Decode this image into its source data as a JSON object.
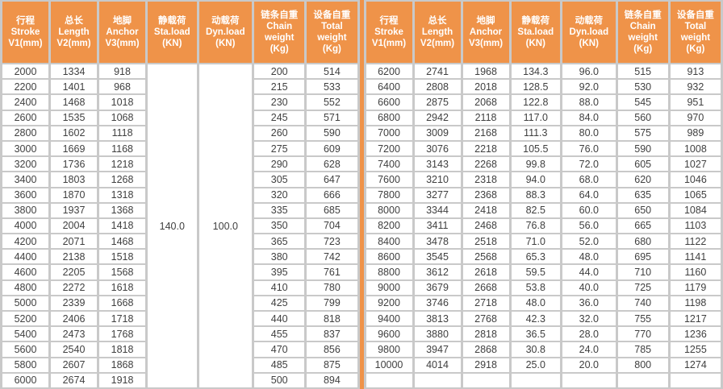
{
  "colors": {
    "header_orange": "#ef9349",
    "grid_gray": "#c9c9c9",
    "cell_white": "#ffffff",
    "text_dark": "#3f3f3f",
    "header_text": "#ffffff"
  },
  "headers": [
    "行程\nStroke\nV1(mm)",
    "总长\nLength\nV2(mm)",
    "地脚\nAnchor\nV3(mm)",
    "静载荷\nSta.load\n(KN)",
    "动载荷\nDyn.load\n(KN)",
    "链条自重\nChain\nweight\n(Kg)",
    "设备自重\nTotal\nweight\n(Kg)"
  ],
  "left_table": {
    "merged_static_load": "140.0",
    "merged_dynamic_load": "100.0",
    "rows": [
      [
        "2000",
        "1334",
        "918",
        "200",
        "514"
      ],
      [
        "2200",
        "1401",
        "968",
        "215",
        "533"
      ],
      [
        "2400",
        "1468",
        "1018",
        "230",
        "552"
      ],
      [
        "2600",
        "1535",
        "1068",
        "245",
        "571"
      ],
      [
        "2800",
        "1602",
        "1118",
        "260",
        "590"
      ],
      [
        "3000",
        "1669",
        "1168",
        "275",
        "609"
      ],
      [
        "3200",
        "1736",
        "1218",
        "290",
        "628"
      ],
      [
        "3400",
        "1803",
        "1268",
        "305",
        "647"
      ],
      [
        "3600",
        "1870",
        "1318",
        "320",
        "666"
      ],
      [
        "3800",
        "1937",
        "1368",
        "335",
        "685"
      ],
      [
        "4000",
        "2004",
        "1418",
        "350",
        "704"
      ],
      [
        "4200",
        "2071",
        "1468",
        "365",
        "723"
      ],
      [
        "4400",
        "2138",
        "1518",
        "380",
        "742"
      ],
      [
        "4600",
        "2205",
        "1568",
        "395",
        "761"
      ],
      [
        "4800",
        "2272",
        "1618",
        "410",
        "780"
      ],
      [
        "5000",
        "2339",
        "1668",
        "425",
        "799"
      ],
      [
        "5200",
        "2406",
        "1718",
        "440",
        "818"
      ],
      [
        "5400",
        "2473",
        "1768",
        "455",
        "837"
      ],
      [
        "5600",
        "2540",
        "1818",
        "470",
        "856"
      ],
      [
        "5800",
        "2607",
        "1868",
        "485",
        "875"
      ],
      [
        "6000",
        "2674",
        "1918",
        "500",
        "894"
      ]
    ]
  },
  "right_table": {
    "rows": [
      [
        "6200",
        "2741",
        "1968",
        "134.3",
        "96.0",
        "515",
        "913"
      ],
      [
        "6400",
        "2808",
        "2018",
        "128.5",
        "92.0",
        "530",
        "932"
      ],
      [
        "6600",
        "2875",
        "2068",
        "122.8",
        "88.0",
        "545",
        "951"
      ],
      [
        "6800",
        "2942",
        "2118",
        "117.0",
        "84.0",
        "560",
        "970"
      ],
      [
        "7000",
        "3009",
        "2168",
        "111.3",
        "80.0",
        "575",
        "989"
      ],
      [
        "7200",
        "3076",
        "2218",
        "105.5",
        "76.0",
        "590",
        "1008"
      ],
      [
        "7400",
        "3143",
        "2268",
        "99.8",
        "72.0",
        "605",
        "1027"
      ],
      [
        "7600",
        "3210",
        "2318",
        "94.0",
        "68.0",
        "620",
        "1046"
      ],
      [
        "7800",
        "3277",
        "2368",
        "88.3",
        "64.0",
        "635",
        "1065"
      ],
      [
        "8000",
        "3344",
        "2418",
        "82.5",
        "60.0",
        "650",
        "1084"
      ],
      [
        "8200",
        "3411",
        "2468",
        "76.8",
        "56.0",
        "665",
        "1103"
      ],
      [
        "8400",
        "3478",
        "2518",
        "71.0",
        "52.0",
        "680",
        "1122"
      ],
      [
        "8600",
        "3545",
        "2568",
        "65.3",
        "48.0",
        "695",
        "1141"
      ],
      [
        "8800",
        "3612",
        "2618",
        "59.5",
        "44.0",
        "710",
        "1160"
      ],
      [
        "9000",
        "3679",
        "2668",
        "53.8",
        "40.0",
        "725",
        "1179"
      ],
      [
        "9200",
        "3746",
        "2718",
        "48.0",
        "36.0",
        "740",
        "1198"
      ],
      [
        "9400",
        "3813",
        "2768",
        "42.3",
        "32.0",
        "755",
        "1217"
      ],
      [
        "9600",
        "3880",
        "2818",
        "36.5",
        "28.0",
        "770",
        "1236"
      ],
      [
        "9800",
        "3947",
        "2868",
        "30.8",
        "24.0",
        "785",
        "1255"
      ],
      [
        "10000",
        "4014",
        "2918",
        "25.0",
        "20.0",
        "800",
        "1274"
      ],
      [
        "",
        "",
        "",
        "",
        "",
        "",
        ""
      ]
    ]
  }
}
